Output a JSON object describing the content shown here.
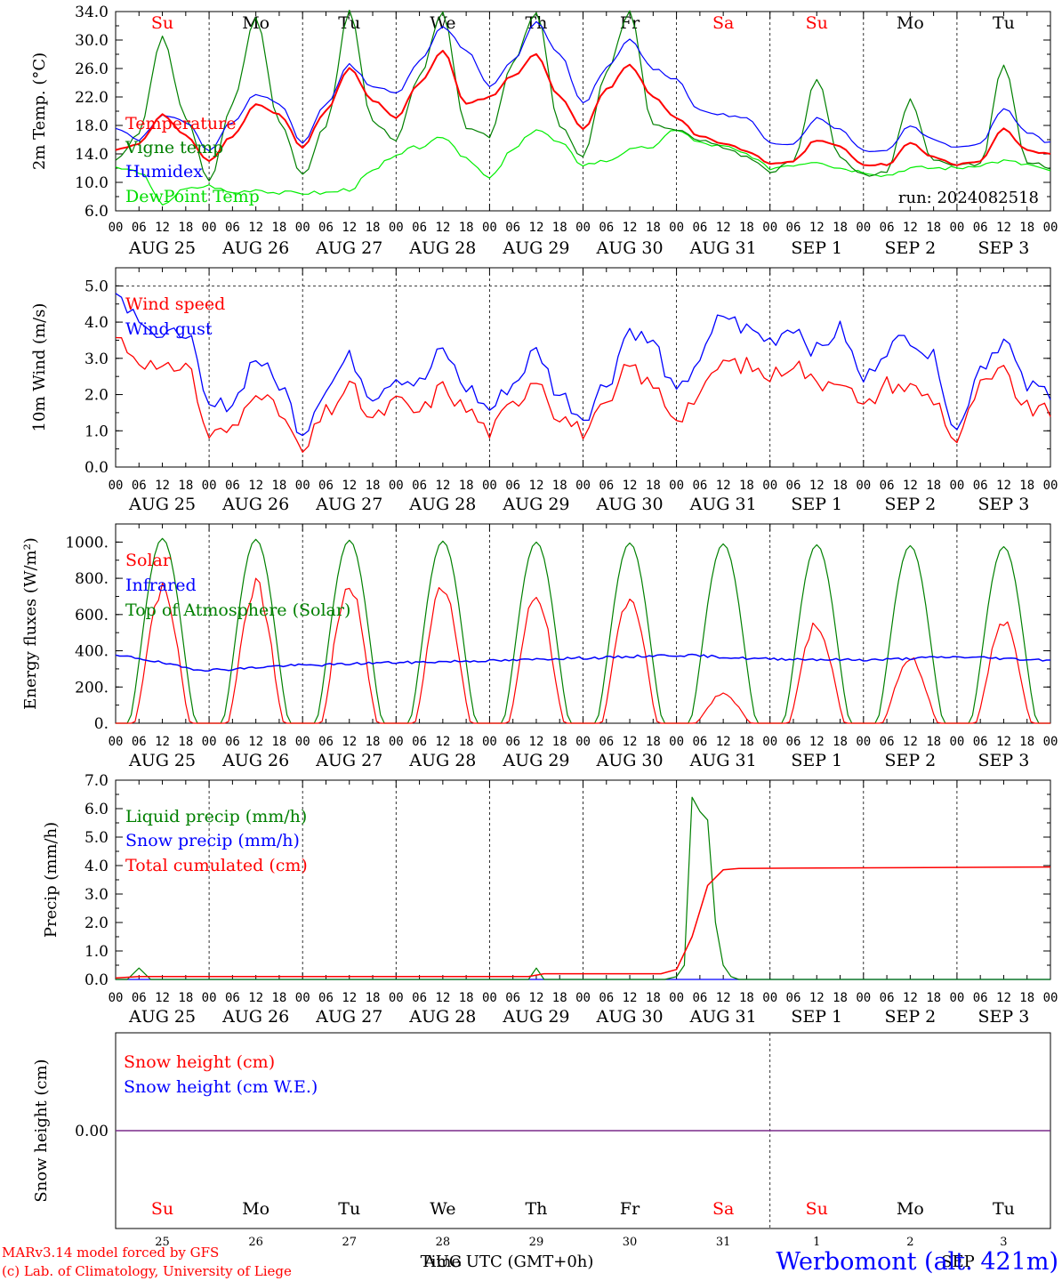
{
  "colors": {
    "temperature": "#ff0000",
    "vigne": "#008000",
    "humidex": "#0000ff",
    "dewpoint": "#00ee00",
    "weekend": "#ff0000",
    "weekday": "#000000",
    "footer_left": "#ff0000",
    "footer_right": "#0000ff"
  },
  "days": {
    "weekday_labels": [
      "Su",
      "Mo",
      "Tu",
      "We",
      "Th",
      "Fr",
      "Sa",
      "Su",
      "Mo",
      "Tu"
    ],
    "weekend_flags": [
      true,
      false,
      false,
      false,
      false,
      false,
      true,
      true,
      false,
      false
    ],
    "date_labels": [
      "AUG 25",
      "AUG 26",
      "AUG 27",
      "AUG 28",
      "AUG 29",
      "AUG 30",
      "AUG 31",
      "SEP  1",
      "SEP  2",
      "SEP  3"
    ],
    "hour_ticks": [
      "00",
      "06",
      "12",
      "18"
    ],
    "final_tick": "00",
    "bottom_day_numbers": [
      "25",
      "26",
      "27",
      "28",
      "29",
      "30",
      "31",
      "1",
      "2",
      "3"
    ]
  },
  "panels": {
    "temp": {
      "ylabel": "2m Temp. (°C)",
      "ticks": [
        "6.0",
        "10.0",
        "14.0",
        "18.0",
        "22.0",
        "26.0",
        "30.0",
        "34.0"
      ],
      "legend": [
        "Temperature",
        "Vigne temp",
        "Humidex",
        "DewPoint Temp"
      ],
      "run_label": "run: 2024082518"
    },
    "wind": {
      "ylabel": "10m Wind (m/s)",
      "ticks": [
        "0.0",
        "1.0",
        "2.0",
        "3.0",
        "4.0",
        "5.0"
      ],
      "legend": [
        "Wind speed",
        "Wind gust"
      ]
    },
    "flux": {
      "ylabel": "Energy fluxes (W/m²)",
      "ticks": [
        "0.",
        "200.",
        "400.",
        "600.",
        "800.",
        "1000."
      ],
      "legend": [
        "Solar",
        "Infrared",
        "Top of Atmosphere (Solar)"
      ]
    },
    "precip": {
      "ylabel": "Precip (mm/h)",
      "ticks": [
        "0.0",
        "1.0",
        "2.0",
        "3.0",
        "4.0",
        "5.0",
        "6.0",
        "7.0"
      ],
      "legend": [
        "Liquid precip (mm/h)",
        "Snow precip (mm/h)",
        "Total cumulated (cm)"
      ]
    },
    "snow": {
      "ylabel": "Snow height (cm)",
      "ticks": [
        "0.00"
      ],
      "legend": [
        "Snow height (cm)",
        "Snow height (cm W.E.)"
      ]
    }
  },
  "footer": {
    "line1": "MARv3.14 model forced by GFS",
    "line2": "(c) Lab. of Climatology, University of Liege",
    "xlabel": "Time UTC (GMT+0h)",
    "month_left": "AUG",
    "month_right": "SEP",
    "station": "Werbomont (alt. 421m)"
  },
  "chart_data": [
    {
      "type": "line",
      "title": "",
      "xlabel": "",
      "ylabel": "2m Temp. (°C)",
      "ylim": [
        6,
        34
      ],
      "x_range_hours_from_2024-08-25T00": [
        0,
        240
      ],
      "series": [
        {
          "name": "Temperature",
          "x_hours": [
            0,
            6,
            12,
            18,
            24,
            30,
            36,
            42,
            48,
            54,
            60,
            66,
            72,
            78,
            84,
            90,
            96,
            102,
            108,
            114,
            120,
            126,
            132,
            138,
            144,
            150,
            156,
            162,
            168,
            174,
            180,
            186,
            192,
            198,
            204,
            210,
            216,
            222,
            228,
            234,
            240
          ],
          "values": [
            14.5,
            15.5,
            19.5,
            16.5,
            13.0,
            16.5,
            21.0,
            19.5,
            15.0,
            20.0,
            26.0,
            21.5,
            19.0,
            24.0,
            28.5,
            21.0,
            22.0,
            25.0,
            28.0,
            22.0,
            17.5,
            23.0,
            26.5,
            22.0,
            19.0,
            16.5,
            15.5,
            14.5,
            12.5,
            13.0,
            16.0,
            15.0,
            12.5,
            12.5,
            15.5,
            13.5,
            12.5,
            13.0,
            17.5,
            14.5,
            14.0
          ]
        },
        {
          "name": "Vigne temp",
          "x_hours": [
            0,
            6,
            12,
            18,
            24,
            30,
            36,
            42,
            48,
            54,
            60,
            66,
            72,
            78,
            84,
            90,
            96,
            102,
            108,
            114,
            120,
            126,
            132,
            138,
            144,
            150,
            156,
            162,
            168,
            174,
            180,
            186,
            192,
            198,
            204,
            210,
            216,
            222,
            228,
            234,
            240
          ],
          "values": [
            13.0,
            17.0,
            30.5,
            19.0,
            10.0,
            21.0,
            33.0,
            18.5,
            11.0,
            18.0,
            34.0,
            18.5,
            16.0,
            25.0,
            34.0,
            17.5,
            16.5,
            27.0,
            34.0,
            18.0,
            13.5,
            25.5,
            34.0,
            18.0,
            17.5,
            16.0,
            15.0,
            13.5,
            11.5,
            13.0,
            24.5,
            13.5,
            11.0,
            11.5,
            21.5,
            13.0,
            12.5,
            12.5,
            26.5,
            13.0,
            12.0
          ]
        },
        {
          "name": "Humidex",
          "x_hours": [
            0,
            6,
            12,
            18,
            24,
            30,
            36,
            42,
            48,
            54,
            60,
            66,
            72,
            78,
            84,
            90,
            96,
            102,
            108,
            114,
            120,
            126,
            132,
            138,
            144,
            150,
            156,
            162,
            168,
            174,
            180,
            186,
            192,
            198,
            204,
            210,
            216,
            222,
            228,
            234,
            240
          ],
          "values": [
            17.5,
            16.0,
            19.5,
            18.5,
            14.5,
            18.5,
            22.5,
            21.0,
            15.5,
            21.0,
            26.5,
            23.5,
            22.5,
            27.0,
            32.0,
            28.5,
            23.5,
            27.0,
            32.5,
            28.0,
            21.0,
            26.0,
            30.0,
            26.0,
            24.5,
            20.0,
            19.5,
            19.0,
            15.5,
            15.5,
            19.0,
            17.5,
            14.5,
            14.5,
            18.0,
            16.0,
            15.0,
            15.5,
            20.5,
            17.0,
            15.5
          ]
        },
        {
          "name": "DewPoint Temp",
          "x_hours": [
            0,
            6,
            12,
            18,
            24,
            30,
            36,
            42,
            48,
            54,
            60,
            66,
            72,
            78,
            84,
            90,
            96,
            102,
            108,
            114,
            120,
            126,
            132,
            138,
            144,
            150,
            156,
            162,
            168,
            174,
            180,
            186,
            192,
            198,
            204,
            210,
            216,
            222,
            228,
            234,
            240
          ],
          "values": [
            12.0,
            11.5,
            7.0,
            9.0,
            9.5,
            8.5,
            9.0,
            8.5,
            8.5,
            8.5,
            9.0,
            11.5,
            14.0,
            15.0,
            16.5,
            13.5,
            10.5,
            14.5,
            17.5,
            15.5,
            12.5,
            13.0,
            14.5,
            15.0,
            17.5,
            15.5,
            15.0,
            14.0,
            12.0,
            12.5,
            13.0,
            12.0,
            11.5,
            11.0,
            12.0,
            12.0,
            12.0,
            12.5,
            13.0,
            12.5,
            11.5
          ]
        }
      ]
    },
    {
      "type": "line",
      "title": "",
      "xlabel": "",
      "ylabel": "10m Wind (m/s)",
      "ylim": [
        0,
        5.5
      ],
      "reference_line": 5.0,
      "series": [
        {
          "name": "Wind speed",
          "x_hours": [
            0,
            6,
            12,
            18,
            24,
            30,
            36,
            42,
            48,
            54,
            60,
            66,
            72,
            78,
            84,
            90,
            96,
            102,
            108,
            114,
            120,
            126,
            132,
            138,
            144,
            150,
            156,
            162,
            168,
            174,
            180,
            186,
            192,
            198,
            204,
            210,
            216,
            222,
            228,
            234,
            240
          ],
          "values": [
            3.6,
            3.0,
            2.6,
            2.9,
            0.9,
            1.0,
            2.2,
            1.5,
            0.4,
            1.5,
            2.2,
            1.3,
            1.8,
            1.5,
            2.2,
            1.6,
            1.0,
            1.7,
            2.5,
            1.4,
            1.0,
            1.6,
            2.8,
            2.2,
            1.4,
            2.0,
            2.9,
            2.8,
            2.5,
            2.9,
            2.3,
            2.5,
            1.6,
            2.3,
            2.2,
            1.9,
            0.7,
            2.2,
            2.6,
            1.6,
            1.5
          ]
        },
        {
          "name": "Wind gust",
          "x_hours": [
            0,
            6,
            12,
            18,
            24,
            30,
            36,
            42,
            48,
            54,
            60,
            66,
            72,
            78,
            84,
            90,
            96,
            102,
            108,
            114,
            120,
            126,
            132,
            138,
            144,
            150,
            156,
            162,
            168,
            174,
            180,
            186,
            192,
            198,
            204,
            210,
            216,
            222,
            228,
            234,
            240
          ],
          "values": [
            4.8,
            4.2,
            3.5,
            3.8,
            1.6,
            1.8,
            3.0,
            2.3,
            1.0,
            2.2,
            3.0,
            2.0,
            2.5,
            2.3,
            3.2,
            2.2,
            1.6,
            2.3,
            3.2,
            2.0,
            1.4,
            2.3,
            3.8,
            3.4,
            2.0,
            3.0,
            4.2,
            3.8,
            3.5,
            3.9,
            3.2,
            3.8,
            2.4,
            3.3,
            3.6,
            3.0,
            1.0,
            2.8,
            3.5,
            2.2,
            2.1
          ]
        }
      ]
    },
    {
      "type": "line",
      "title": "",
      "xlabel": "",
      "ylabel": "Energy fluxes (W/m²)",
      "ylim": [
        0,
        1100
      ],
      "series": [
        {
          "name": "Solar",
          "daily_peaks_W_m2": [
            740,
            760,
            760,
            760,
            700,
            700,
            160,
            550,
            360,
            550
          ]
        },
        {
          "name": "Infrared",
          "x_hours": [
            0,
            24,
            48,
            72,
            96,
            120,
            144,
            168,
            192,
            216,
            240
          ],
          "values": [
            370,
            295,
            320,
            335,
            345,
            360,
            375,
            355,
            350,
            365,
            350
          ]
        },
        {
          "name": "Top of Atmosphere (Solar)",
          "daily_peaks_W_m2": [
            1020,
            1015,
            1010,
            1005,
            1000,
            995,
            990,
            985,
            980,
            975
          ]
        }
      ]
    },
    {
      "type": "line",
      "title": "",
      "xlabel": "",
      "ylabel": "Precip (mm/h)",
      "ylim": [
        0,
        7
      ],
      "series": [
        {
          "name": "Liquid precip (mm/h)",
          "x_hours": [
            0,
            3,
            6,
            9,
            12,
            106,
            108,
            110,
            120,
            141,
            144,
            146,
            148,
            150,
            152,
            154,
            156,
            158,
            160,
            240
          ],
          "values": [
            0,
            0,
            0.4,
            0,
            0,
            0,
            0.4,
            0,
            0,
            0,
            0.1,
            0.5,
            6.4,
            5.9,
            5.6,
            2.0,
            0.5,
            0.1,
            0,
            0
          ]
        },
        {
          "name": "Snow precip (mm/h)",
          "x_hours": [
            0,
            240
          ],
          "values": [
            0,
            0
          ]
        },
        {
          "name": "Total cumulated (cm)",
          "x_hours": [
            0,
            6,
            106,
            110,
            140,
            144,
            148,
            152,
            156,
            160,
            240
          ],
          "values": [
            0.05,
            0.1,
            0.1,
            0.2,
            0.2,
            0.35,
            1.5,
            3.3,
            3.85,
            3.9,
            3.95
          ]
        }
      ]
    },
    {
      "type": "line",
      "title": "",
      "xlabel": "Time UTC (GMT+0h)",
      "ylabel": "Snow height (cm)",
      "series": [
        {
          "name": "Snow height (cm)",
          "x_hours": [
            0,
            240
          ],
          "values": [
            0,
            0
          ]
        },
        {
          "name": "Snow height (cm W.E.)",
          "x_hours": [
            0,
            240
          ],
          "values": [
            0,
            0
          ]
        }
      ]
    }
  ]
}
